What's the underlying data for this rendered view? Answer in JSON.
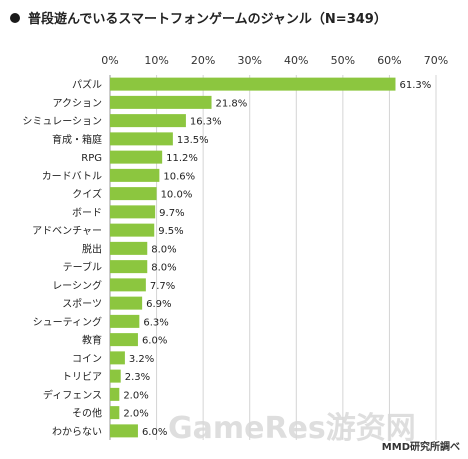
{
  "title": "普段遊んでいるスマートフォンゲームのジャンル（N=349）",
  "source": "MMD研究所調べ",
  "watermark": "GameRes游资网",
  "bar_color": "#8cc63f",
  "chart_data": {
    "type": "bar",
    "orientation": "horizontal",
    "title": "普段遊んでいるスマートフォンゲームのジャンル（N=349）",
    "xlim": [
      0,
      70
    ],
    "ticks": [
      0,
      10,
      20,
      30,
      40,
      50,
      60,
      70
    ],
    "tick_labels": [
      "0%",
      "10%",
      "20%",
      "30%",
      "40%",
      "50%",
      "60%",
      "70%"
    ],
    "grid": true,
    "categories": [
      "パズル",
      "アクション",
      "シミュレーション",
      "育成・箱庭",
      "RPG",
      "カードバトル",
      "クイズ",
      "ボード",
      "アドベンチャー",
      "脱出",
      "テーブル",
      "レーシング",
      "スポーツ",
      "シューティング",
      "教育",
      "コイン",
      "トリビア",
      "ディフェンス",
      "その他",
      "わからない"
    ],
    "values": [
      61.3,
      21.8,
      16.3,
      13.5,
      11.2,
      10.6,
      10.0,
      9.7,
      9.5,
      8.0,
      8.0,
      7.7,
      6.9,
      6.3,
      6.0,
      3.2,
      2.3,
      2.0,
      2.0,
      6.0
    ],
    "value_labels": [
      "61.3%",
      "21.8%",
      "16.3%",
      "13.5%",
      "11.2%",
      "10.6%",
      "10.0%",
      "9.7%",
      "9.5%",
      "8.0%",
      "8.0%",
      "7.7%",
      "6.9%",
      "6.3%",
      "6.0%",
      "3.2%",
      "2.3%",
      "2.0%",
      "2.0%",
      "6.0%"
    ]
  }
}
